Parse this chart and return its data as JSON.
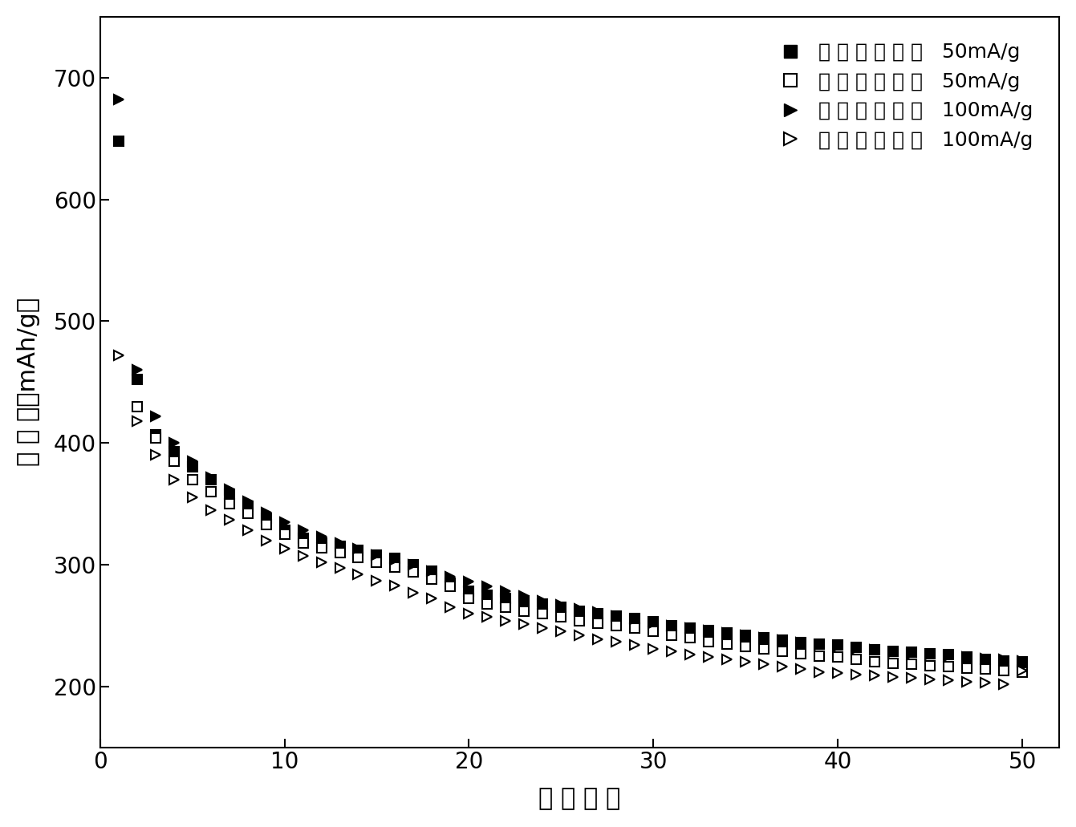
{
  "title": "",
  "xlabel": "循 环 次 数",
  "ylabel": "比 容 量（mAh/g）",
  "xlim": [
    0,
    52
  ],
  "ylim": [
    150,
    750
  ],
  "yticks": [
    200,
    300,
    400,
    500,
    600,
    700
  ],
  "xticks": [
    0,
    10,
    20,
    30,
    40,
    50
  ],
  "legend_labels": [
    "充 电 电 流 密 度   50mA/g",
    "放 电 电 流 密 度   50mA/g",
    "充 电 电 流 密 度   100mA/g",
    "放 电 电 流 密 度   100mA/g"
  ],
  "series": {
    "charge_50": {
      "x": [
        1,
        2,
        3,
        4,
        5,
        6,
        7,
        8,
        9,
        10,
        11,
        12,
        13,
        14,
        15,
        16,
        17,
        18,
        19,
        20,
        21,
        22,
        23,
        24,
        25,
        26,
        27,
        28,
        29,
        30,
        31,
        32,
        33,
        34,
        35,
        36,
        37,
        38,
        39,
        40,
        41,
        42,
        43,
        44,
        45,
        46,
        47,
        48,
        49,
        50
      ],
      "y": [
        648,
        452,
        407,
        393,
        380,
        370,
        358,
        348,
        338,
        328,
        322,
        318,
        315,
        312,
        308,
        305,
        300,
        295,
        285,
        278,
        275,
        272,
        270,
        268,
        265,
        262,
        260,
        258,
        256,
        253,
        250,
        248,
        246,
        244,
        242,
        240,
        238,
        236,
        235,
        234,
        232,
        230,
        229,
        228,
        227,
        226,
        224,
        222,
        221,
        220
      ],
      "marker": "s",
      "filled": true,
      "color": "black"
    },
    "discharge_50": {
      "x": [
        2,
        3,
        4,
        5,
        6,
        7,
        8,
        9,
        10,
        11,
        12,
        13,
        14,
        15,
        16,
        17,
        18,
        19,
        20,
        21,
        22,
        23,
        24,
        25,
        26,
        27,
        28,
        29,
        30,
        31,
        32,
        33,
        34,
        35,
        36,
        37,
        38,
        39,
        40,
        41,
        42,
        43,
        44,
        45,
        46,
        47,
        48,
        49,
        50
      ],
      "y": [
        430,
        404,
        385,
        370,
        360,
        350,
        342,
        333,
        325,
        318,
        314,
        310,
        306,
        302,
        298,
        294,
        288,
        282,
        272,
        268,
        265,
        262,
        260,
        257,
        254,
        252,
        250,
        248,
        245,
        242,
        240,
        237,
        235,
        233,
        231,
        229,
        227,
        225,
        224,
        222,
        220,
        219,
        218,
        217,
        216,
        215,
        214,
        213,
        212
      ],
      "marker": "s",
      "filled": false,
      "color": "black"
    },
    "charge_100": {
      "x": [
        1,
        2,
        3,
        4,
        5,
        6,
        7,
        8,
        9,
        10,
        11,
        12,
        13,
        14,
        15,
        16,
        17,
        18,
        19,
        20,
        21,
        22,
        23,
        24,
        25,
        26,
        27,
        28,
        29,
        30,
        31,
        32,
        33,
        34,
        35,
        36,
        37,
        38,
        39,
        40,
        41,
        42,
        43,
        44,
        45,
        46,
        47,
        48,
        49,
        50
      ],
      "y": [
        682,
        460,
        422,
        400,
        385,
        372,
        362,
        352,
        343,
        335,
        328,
        323,
        318,
        313,
        308,
        304,
        300,
        295,
        290,
        286,
        282,
        278,
        274,
        270,
        267,
        264,
        261,
        258,
        255,
        252,
        250,
        248,
        246,
        244,
        242,
        240,
        238,
        236,
        234,
        233,
        231,
        230,
        228,
        227,
        226,
        225,
        224,
        223,
        222,
        221
      ],
      "marker": ">",
      "filled": true,
      "color": "black"
    },
    "discharge_100": {
      "x": [
        1,
        2,
        3,
        4,
        5,
        6,
        7,
        8,
        9,
        10,
        11,
        12,
        13,
        14,
        15,
        16,
        17,
        18,
        19,
        20,
        21,
        22,
        23,
        24,
        25,
        26,
        27,
        28,
        29,
        30,
        31,
        32,
        33,
        34,
        35,
        36,
        37,
        38,
        39,
        40,
        41,
        42,
        43,
        44,
        45,
        46,
        47,
        48,
        49,
        50
      ],
      "y": [
        472,
        418,
        390,
        370,
        355,
        345,
        337,
        328,
        320,
        313,
        307,
        302,
        297,
        292,
        287,
        283,
        277,
        272,
        265,
        260,
        257,
        254,
        251,
        248,
        245,
        242,
        239,
        237,
        234,
        231,
        229,
        226,
        224,
        222,
        220,
        218,
        216,
        214,
        212,
        211,
        210,
        209,
        208,
        207,
        206,
        205,
        204,
        203,
        202,
        213
      ],
      "marker": ">",
      "filled": false,
      "color": "black"
    }
  }
}
